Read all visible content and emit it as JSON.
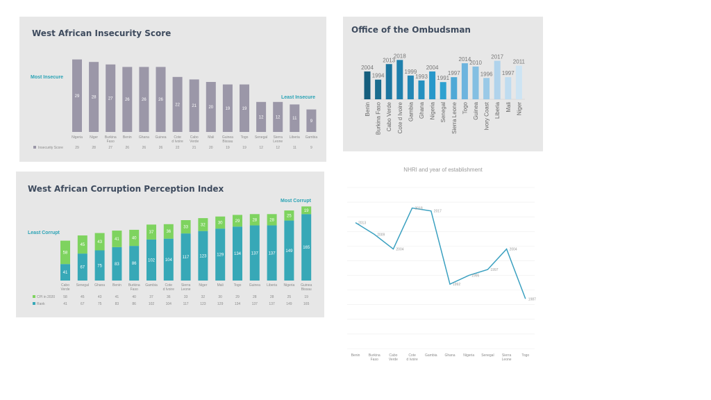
{
  "chart_data": [
    {
      "type": "bar",
      "title": "West African Insecurity Score",
      "annotations": [
        "Most Insecure",
        "Least Insecure"
      ],
      "categories": [
        "Nigeria",
        "Niger",
        "Burkina Faso",
        "Benin",
        "Ghana",
        "Guinea",
        "Cote d Ivoire",
        "Cabo Verde",
        "Mali",
        "Guinea Bissau",
        "Togo",
        "Senegal",
        "Sierra Leone",
        "Liberia",
        "Gambia"
      ],
      "series": [
        {
          "name": "Insecurity Score",
          "values": [
            29,
            28,
            27,
            26,
            26,
            26,
            22,
            21,
            20,
            19,
            19,
            12,
            12,
            11,
            9
          ]
        }
      ],
      "ylim": [
        0,
        30
      ],
      "grid": false,
      "color": "#9b97a8",
      "annotation_color": "#2aa3b5"
    },
    {
      "type": "bar",
      "title": "Office of the Ombudsman",
      "categories": [
        "Benin",
        "Burkina Faso",
        "Cabo Verde",
        "Cote d Ivoire",
        "Gambia",
        "Ghana",
        "Nigeria",
        "Senegal",
        "Sierra Leone",
        "Togo",
        "Guinea",
        "Ivory Coast",
        "Liberia",
        "Mali",
        "Niger"
      ],
      "values": [
        2004,
        1994,
        2013,
        2018,
        1999,
        1993,
        2004,
        1991,
        1997,
        2014,
        2010,
        1996,
        2017,
        1997,
        2011
      ],
      "ylim": [
        1970,
        2020
      ],
      "grid": false,
      "colors": [
        "#155e7d",
        "#1a6d8f",
        "#1c76a0",
        "#1f80ad",
        "#2387b5",
        "#2490c0",
        "#2898ca",
        "#2ea1d0",
        "#4fa9d6",
        "#6db4de",
        "#84bfe2",
        "#9ac9e7",
        "#b0d3ec",
        "#bfdcf0",
        "#cde4f3"
      ]
    },
    {
      "type": "bar",
      "stacked": true,
      "title": "West African Corruption Perception Index",
      "annotations": [
        "Least Corrupt",
        "Most Corrupt"
      ],
      "categories": [
        "Cabo Verde",
        "Senegal",
        "Ghana",
        "Benin",
        "Burkina Faso",
        "Gambia",
        "Cote d Ivoire",
        "Sierra Leone",
        "Niger",
        "Mali",
        "Togo",
        "Guinea",
        "Liberia",
        "Nigeria",
        "Guinea Bissau"
      ],
      "series": [
        {
          "name": "Rank",
          "values": [
            41,
            67,
            75,
            83,
            86,
            102,
            104,
            117,
            123,
            129,
            134,
            137,
            137,
            149,
            165
          ],
          "color": "#37a8b7"
        },
        {
          "name": "CPI in 2020",
          "values": [
            58,
            45,
            43,
            41,
            40,
            37,
            36,
            33,
            32,
            30,
            29,
            28,
            28,
            25,
            19
          ],
          "color": "#7ed35f"
        }
      ],
      "ylim": [
        0,
        190
      ],
      "grid": false
    },
    {
      "type": "line",
      "title": "NHRI and year of establishment",
      "categories": [
        "Benin",
        "Burkina Faso",
        "Cabo Verde",
        "Cote d Ivoire",
        "Gambia",
        "Ghana",
        "Nigeria",
        "Senegal",
        "Sierra Leone",
        "Togo"
      ],
      "values": [
        2013,
        2009,
        2004,
        2018,
        2017,
        1992,
        1995,
        1997,
        2004,
        1987
      ],
      "ylim": [
        1970,
        2025
      ],
      "grid": true,
      "color": "#3aa0c0"
    }
  ]
}
